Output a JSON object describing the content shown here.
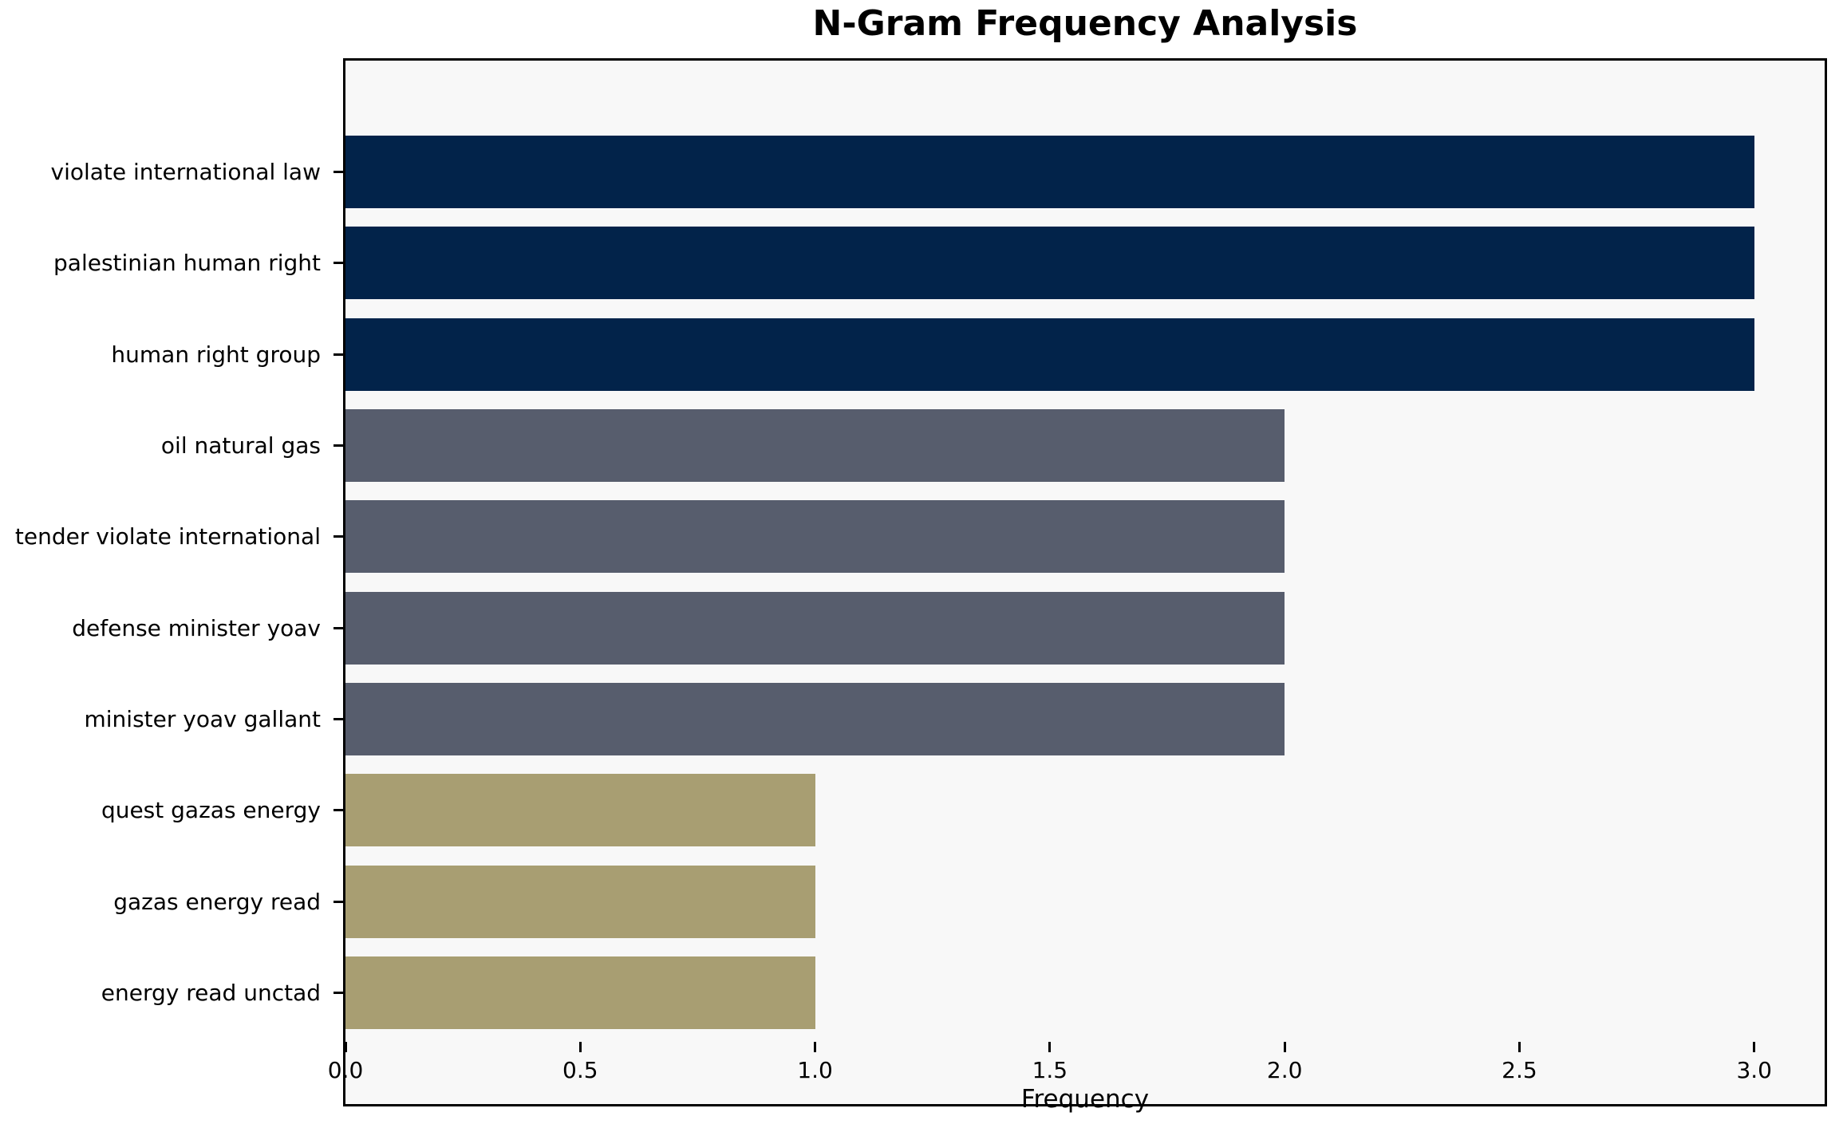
{
  "chart_data": {
    "type": "bar",
    "orientation": "horizontal",
    "title": "N-Gram Frequency Analysis",
    "xlabel": "Frequency",
    "ylabel": "",
    "categories": [
      "violate international law",
      "palestinian human right",
      "human right group",
      "oil natural gas",
      "tender violate international",
      "defense minister yoav",
      "minister yoav gallant",
      "quest gazas energy",
      "gazas energy read",
      "energy read unctad"
    ],
    "values": [
      3,
      3,
      3,
      2,
      2,
      2,
      2,
      1,
      1,
      1
    ],
    "bar_colors": [
      "#02234a",
      "#02234a",
      "#02234a",
      "#575d6d",
      "#575d6d",
      "#575d6d",
      "#575d6d",
      "#a89e72",
      "#a89e72",
      "#a89e72"
    ],
    "xlim": [
      0,
      3.15
    ],
    "xticks": [
      0.0,
      0.5,
      1.0,
      1.5,
      2.0,
      2.5,
      3.0
    ],
    "xtick_labels": [
      "0.0",
      "0.5",
      "1.0",
      "1.5",
      "2.0",
      "2.5",
      "3.0"
    ],
    "grid": false,
    "legend": null,
    "colors": {
      "frequency_3": "#02234a",
      "frequency_2": "#575d6d",
      "frequency_1": "#a89e72",
      "plot_background": "#f8f8f8",
      "figure_background": "#ffffff",
      "spine": "#000000",
      "text": "#000000"
    }
  }
}
